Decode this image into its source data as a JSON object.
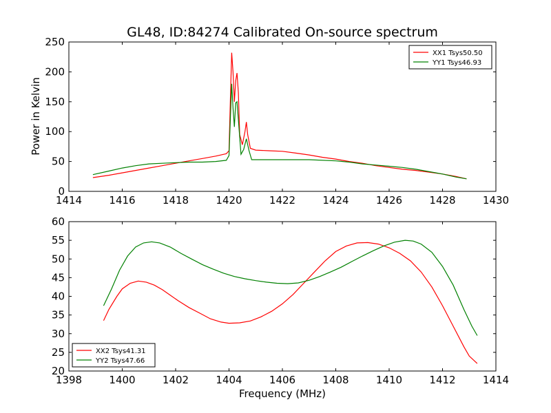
{
  "figure": {
    "title": "GL48, ID:84274 Calibrated On-source spectrum",
    "xlabel": "Frequency (MHz)",
    "ylabel": "Power in Kelvin"
  },
  "chart_data": [
    {
      "type": "line",
      "title": "GL48, ID:84274 Calibrated On-source spectrum",
      "xlabel": "",
      "ylabel": "Power in Kelvin",
      "xlim": [
        1414,
        1430
      ],
      "ylim": [
        0,
        250
      ],
      "xticks": [
        1414,
        1416,
        1418,
        1420,
        1422,
        1424,
        1426,
        1428,
        1430
      ],
      "yticks": [
        0,
        50,
        100,
        150,
        200,
        250
      ],
      "grid": false,
      "legend_position": "top-right",
      "series": [
        {
          "name": "XX1 Tsys50.50",
          "color": "#ff0000",
          "points": [
            [
              1414.9,
              23
            ],
            [
              1415.5,
              27
            ],
            [
              1416.0,
              31
            ],
            [
              1416.5,
              35
            ],
            [
              1417.0,
              39
            ],
            [
              1417.5,
              43
            ],
            [
              1418.0,
              47
            ],
            [
              1418.5,
              51
            ],
            [
              1419.0,
              55
            ],
            [
              1419.5,
              59
            ],
            [
              1419.9,
              63
            ],
            [
              1420.0,
              68
            ],
            [
              1420.05,
              150
            ],
            [
              1420.1,
              232
            ],
            [
              1420.15,
              200
            ],
            [
              1420.2,
              150
            ],
            [
              1420.25,
              185
            ],
            [
              1420.3,
              198
            ],
            [
              1420.35,
              165
            ],
            [
              1420.4,
              95
            ],
            [
              1420.5,
              78
            ],
            [
              1420.6,
              100
            ],
            [
              1420.65,
              116
            ],
            [
              1420.7,
              95
            ],
            [
              1420.8,
              72
            ],
            [
              1421.0,
              69
            ],
            [
              1421.5,
              68
            ],
            [
              1422.0,
              67
            ],
            [
              1422.5,
              64
            ],
            [
              1423.0,
              61
            ],
            [
              1423.5,
              57
            ],
            [
              1424.0,
              54
            ],
            [
              1424.5,
              50
            ],
            [
              1425.0,
              47
            ],
            [
              1425.5,
              43
            ],
            [
              1426.0,
              40
            ],
            [
              1426.5,
              37
            ],
            [
              1427.0,
              35
            ],
            [
              1427.5,
              32
            ],
            [
              1428.0,
              29
            ],
            [
              1428.5,
              25
            ],
            [
              1428.9,
              21
            ]
          ]
        },
        {
          "name": "YY1 Tsys46.93",
          "color": "#008000",
          "points": [
            [
              1414.9,
              28
            ],
            [
              1415.5,
              34
            ],
            [
              1416.0,
              39
            ],
            [
              1416.5,
              43
            ],
            [
              1417.0,
              46
            ],
            [
              1417.5,
              47
            ],
            [
              1418.0,
              48
            ],
            [
              1418.5,
              49
            ],
            [
              1419.0,
              49
            ],
            [
              1419.5,
              50
            ],
            [
              1419.9,
              52
            ],
            [
              1420.0,
              60
            ],
            [
              1420.05,
              120
            ],
            [
              1420.1,
              180
            ],
            [
              1420.15,
              140
            ],
            [
              1420.2,
              108
            ],
            [
              1420.25,
              148
            ],
            [
              1420.3,
              150
            ],
            [
              1420.35,
              120
            ],
            [
              1420.45,
              62
            ],
            [
              1420.55,
              70
            ],
            [
              1420.65,
              88
            ],
            [
              1420.75,
              68
            ],
            [
              1420.85,
              53
            ],
            [
              1421.0,
              53
            ],
            [
              1422.0,
              53
            ],
            [
              1423.0,
              53
            ],
            [
              1424.0,
              51
            ],
            [
              1424.5,
              49
            ],
            [
              1425.0,
              46
            ],
            [
              1425.5,
              44
            ],
            [
              1426.0,
              42
            ],
            [
              1426.5,
              40
            ],
            [
              1427.0,
              37
            ],
            [
              1427.5,
              33
            ],
            [
              1428.0,
              29
            ],
            [
              1428.5,
              24
            ],
            [
              1428.9,
              21
            ]
          ]
        }
      ]
    },
    {
      "type": "line",
      "title": "",
      "xlabel": "Frequency (MHz)",
      "ylabel": "",
      "xlim": [
        1398,
        1414
      ],
      "ylim": [
        20,
        60
      ],
      "xticks": [
        1398,
        1400,
        1402,
        1404,
        1406,
        1408,
        1410,
        1412,
        1414
      ],
      "yticks": [
        20,
        25,
        30,
        35,
        40,
        45,
        50,
        55,
        60
      ],
      "grid": false,
      "legend_position": "bottom-left",
      "series": [
        {
          "name": "XX2 Tsys41.31",
          "color": "#ff0000",
          "points": [
            [
              1399.3,
              33.5
            ],
            [
              1399.5,
              36.5
            ],
            [
              1399.8,
              40
            ],
            [
              1400.0,
              42
            ],
            [
              1400.3,
              43.5
            ],
            [
              1400.6,
              44.1
            ],
            [
              1400.9,
              43.8
            ],
            [
              1401.2,
              43
            ],
            [
              1401.5,
              41.8
            ],
            [
              1401.8,
              40.3
            ],
            [
              1402.1,
              38.8
            ],
            [
              1402.5,
              37
            ],
            [
              1402.9,
              35.5
            ],
            [
              1403.3,
              34
            ],
            [
              1403.7,
              33.1
            ],
            [
              1404.0,
              32.8
            ],
            [
              1404.4,
              32.9
            ],
            [
              1404.8,
              33.4
            ],
            [
              1405.2,
              34.5
            ],
            [
              1405.6,
              36
            ],
            [
              1406.0,
              38
            ],
            [
              1406.4,
              40.5
            ],
            [
              1406.8,
              43.5
            ],
            [
              1407.2,
              46.5
            ],
            [
              1407.6,
              49.5
            ],
            [
              1408.0,
              52
            ],
            [
              1408.4,
              53.5
            ],
            [
              1408.8,
              54.3
            ],
            [
              1409.2,
              54.4
            ],
            [
              1409.6,
              54
            ],
            [
              1410.0,
              53
            ],
            [
              1410.4,
              51.5
            ],
            [
              1410.8,
              49.5
            ],
            [
              1411.2,
              46.5
            ],
            [
              1411.6,
              42.5
            ],
            [
              1412.0,
              37.5
            ],
            [
              1412.4,
              32
            ],
            [
              1412.8,
              26.5
            ],
            [
              1413.0,
              24
            ],
            [
              1413.3,
              22
            ]
          ]
        },
        {
          "name": "YY2 Tsys47.66",
          "color": "#008000",
          "points": [
            [
              1399.3,
              37.5
            ],
            [
              1399.6,
              42
            ],
            [
              1399.9,
              47
            ],
            [
              1400.2,
              50.8
            ],
            [
              1400.5,
              53.2
            ],
            [
              1400.8,
              54.3
            ],
            [
              1401.1,
              54.6
            ],
            [
              1401.4,
              54.3
            ],
            [
              1401.8,
              53.2
            ],
            [
              1402.2,
              51.5
            ],
            [
              1402.6,
              50
            ],
            [
              1403.0,
              48.5
            ],
            [
              1403.4,
              47.3
            ],
            [
              1403.8,
              46.2
            ],
            [
              1404.2,
              45.3
            ],
            [
              1404.6,
              44.7
            ],
            [
              1405.0,
              44.2
            ],
            [
              1405.4,
              43.8
            ],
            [
              1405.8,
              43.5
            ],
            [
              1406.2,
              43.4
            ],
            [
              1406.6,
              43.6
            ],
            [
              1407.0,
              44.3
            ],
            [
              1407.4,
              45.3
            ],
            [
              1407.8,
              46.5
            ],
            [
              1408.2,
              47.8
            ],
            [
              1408.6,
              49.3
            ],
            [
              1409.0,
              50.8
            ],
            [
              1409.4,
              52.2
            ],
            [
              1409.8,
              53.5
            ],
            [
              1410.2,
              54.5
            ],
            [
              1410.6,
              55
            ],
            [
              1410.9,
              54.8
            ],
            [
              1411.2,
              54
            ],
            [
              1411.6,
              51.8
            ],
            [
              1412.0,
              48
            ],
            [
              1412.4,
              43
            ],
            [
              1412.8,
              36.5
            ],
            [
              1413.1,
              32
            ],
            [
              1413.3,
              29.5
            ]
          ]
        }
      ]
    }
  ]
}
